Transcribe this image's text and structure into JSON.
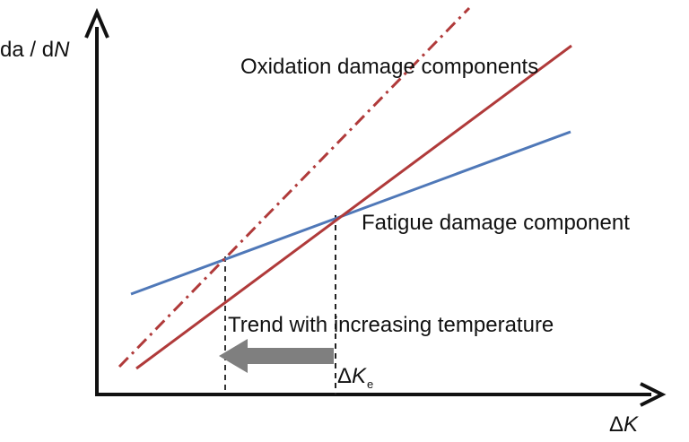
{
  "axes": {
    "y_label": {
      "prefix": "da",
      "sep": " / ",
      "d": "d",
      "var": "N"
    },
    "x_label": {
      "delta": "Δ",
      "var": "K"
    }
  },
  "labels": {
    "oxidation": "Oxidation damage components",
    "fatigue": "Fatigue damage component",
    "trend": "Trend with increasing temperature",
    "delta_ke": {
      "delta": "Δ",
      "var": "K",
      "sub": "e"
    }
  },
  "colors": {
    "axis": "#111111",
    "oxidation_line": "#b03a3a",
    "fatigue_line": "#4f78b8",
    "arrow": "#7f7f7f",
    "guide": "#222222"
  }
}
